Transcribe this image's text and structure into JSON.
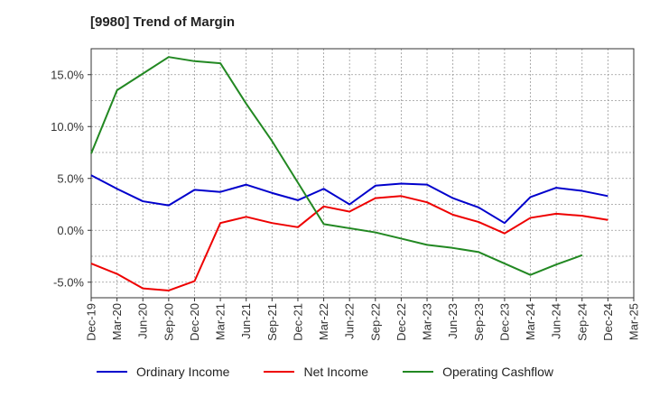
{
  "chart_data": {
    "type": "line",
    "title": "[9980]  Trend of Margin",
    "xlabel": "",
    "ylabel": "",
    "categories": [
      "Dec-19",
      "Mar-20",
      "Jun-20",
      "Sep-20",
      "Dec-20",
      "Mar-21",
      "Jun-21",
      "Sep-21",
      "Dec-21",
      "Mar-22",
      "Jun-22",
      "Sep-22",
      "Dec-22",
      "Mar-23",
      "Jun-23",
      "Sep-23",
      "Dec-23",
      "Mar-24",
      "Jun-24",
      "Sep-24",
      "Dec-24",
      "Mar-25"
    ],
    "ylim": [
      -6.5,
      17.5
    ],
    "yticks": [
      -5,
      0,
      5,
      10,
      15
    ],
    "ytick_labels": [
      "-5.0%",
      "0.0%",
      "5.0%",
      "10.0%",
      "15.0%"
    ],
    "grid": true,
    "legend_position": "bottom",
    "series": [
      {
        "name": "Ordinary Income",
        "color": "#0000cc",
        "values": [
          5.3,
          4.0,
          2.8,
          2.4,
          3.9,
          3.7,
          4.4,
          3.6,
          2.9,
          4.0,
          2.5,
          4.3,
          4.5,
          4.4,
          3.1,
          2.2,
          0.7,
          3.2,
          4.1,
          3.8,
          3.3,
          null
        ]
      },
      {
        "name": "Net Income",
        "color": "#ee0000",
        "values": [
          -3.2,
          -4.2,
          -5.6,
          -5.8,
          -4.9,
          0.7,
          1.3,
          0.7,
          0.3,
          2.3,
          1.8,
          3.1,
          3.3,
          2.7,
          1.5,
          0.8,
          -0.3,
          1.2,
          1.6,
          1.4,
          1.0,
          null
        ]
      },
      {
        "name": "Operating Cashflow",
        "color": "#228822",
        "values": [
          7.4,
          13.5,
          15.1,
          16.7,
          16.3,
          16.1,
          12.2,
          8.6,
          4.6,
          0.6,
          0.2,
          -0.2,
          -0.8,
          -1.4,
          -1.7,
          -2.1,
          -3.2,
          -4.3,
          -3.3,
          -2.4,
          null,
          null
        ]
      }
    ]
  }
}
